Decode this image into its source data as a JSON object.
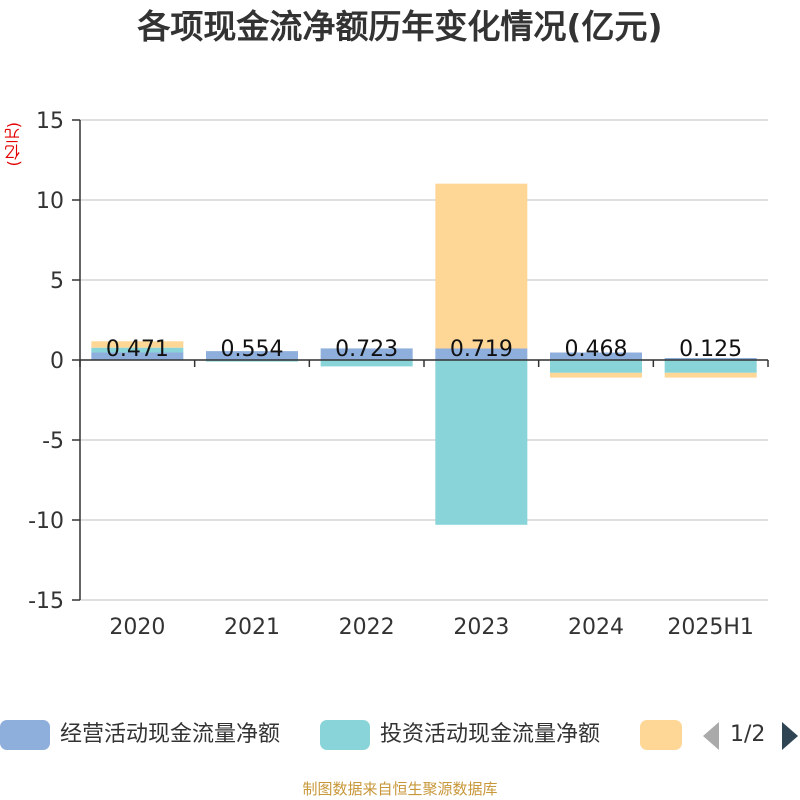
{
  "chart_data": {
    "type": "bar",
    "stacked": true,
    "title": "各项现金流净额历年变化情况(亿元)",
    "ylabel": "(亿元)",
    "xlabel": "",
    "categories": [
      "2020",
      "2021",
      "2022",
      "2023",
      "2024",
      "2025H1"
    ],
    "ylim": [
      -15,
      15
    ],
    "yticks": [
      15,
      10,
      5,
      0,
      -5,
      -10,
      -15
    ],
    "grid": true,
    "series": [
      {
        "name": "经营活动现金流量净额",
        "color": "#8eaedb",
        "values": [
          0.471,
          0.554,
          0.723,
          0.719,
          0.468,
          0.125
        ],
        "labels": [
          "0.471",
          "0.554",
          "0.723",
          "0.719",
          "0.468",
          "0.125"
        ]
      },
      {
        "name": "投资活动现金流量净额",
        "color": "#88d4d8",
        "values": [
          0.3,
          -0.1,
          -0.4,
          -10.3,
          -0.8,
          -0.8
        ]
      },
      {
        "name": "",
        "color": "#fed797",
        "values": [
          0.4,
          0.0,
          0.0,
          10.3,
          -0.3,
          -0.3
        ]
      }
    ],
    "legend_position": "bottom",
    "legend_page": "1/2"
  },
  "source_text": "制图数据来自恒生聚源数据库"
}
